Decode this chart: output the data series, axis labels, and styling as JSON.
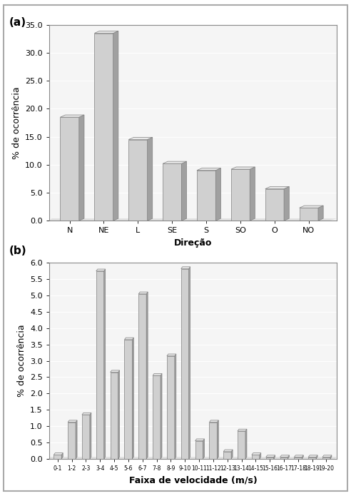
{
  "chart_a": {
    "categories": [
      "N",
      "NE",
      "L",
      "SE",
      "S",
      "SO",
      "O",
      "NO"
    ],
    "values": [
      18.5,
      33.5,
      14.5,
      10.2,
      9.0,
      9.2,
      5.7,
      2.3
    ],
    "ylabel": "% de ocorrência",
    "xlabel": "Direção",
    "ylim": [
      0.0,
      35.0
    ],
    "yticks": [
      0.0,
      5.0,
      10.0,
      15.0,
      20.0,
      25.0,
      30.0,
      35.0
    ]
  },
  "chart_b": {
    "categories": [
      "0-1",
      "1-2",
      "2-3",
      "3-4",
      "4-5",
      "5-6",
      "6-7",
      "7-8",
      "8-9",
      "9-10",
      "10-11",
      "11-12",
      "12-13",
      "13-14",
      "14-15",
      "15-16",
      "16-17",
      "17-18",
      "18-19",
      "19-20"
    ],
    "values": [
      0.12,
      1.12,
      1.35,
      5.75,
      2.65,
      3.65,
      5.05,
      2.55,
      3.15,
      5.82,
      0.55,
      1.12,
      0.22,
      0.85,
      0.12,
      0.05,
      0.05,
      0.05,
      0.05,
      0.05
    ],
    "ylabel": "% de ocorrência",
    "xlabel": "Faixa de velocidade (m/s)",
    "ylim": [
      0.0,
      6.0
    ],
    "yticks": [
      0.0,
      0.5,
      1.0,
      1.5,
      2.0,
      2.5,
      3.0,
      3.5,
      4.0,
      4.5,
      5.0,
      5.5,
      6.0
    ]
  },
  "bar_face_color": "#d0d0d0",
  "bar_right_color": "#a0a0a0",
  "bar_top_color": "#e8e8e8",
  "bar_edge_color": "#808080",
  "fig_bg_color": "#ffffff",
  "plot_bg_color": "#f5f5f5",
  "border_color": "#888888",
  "label_a": "(a)",
  "label_b": "(b)",
  "axis_fontsize": 9,
  "tick_fontsize": 8,
  "label_fontsize": 11
}
